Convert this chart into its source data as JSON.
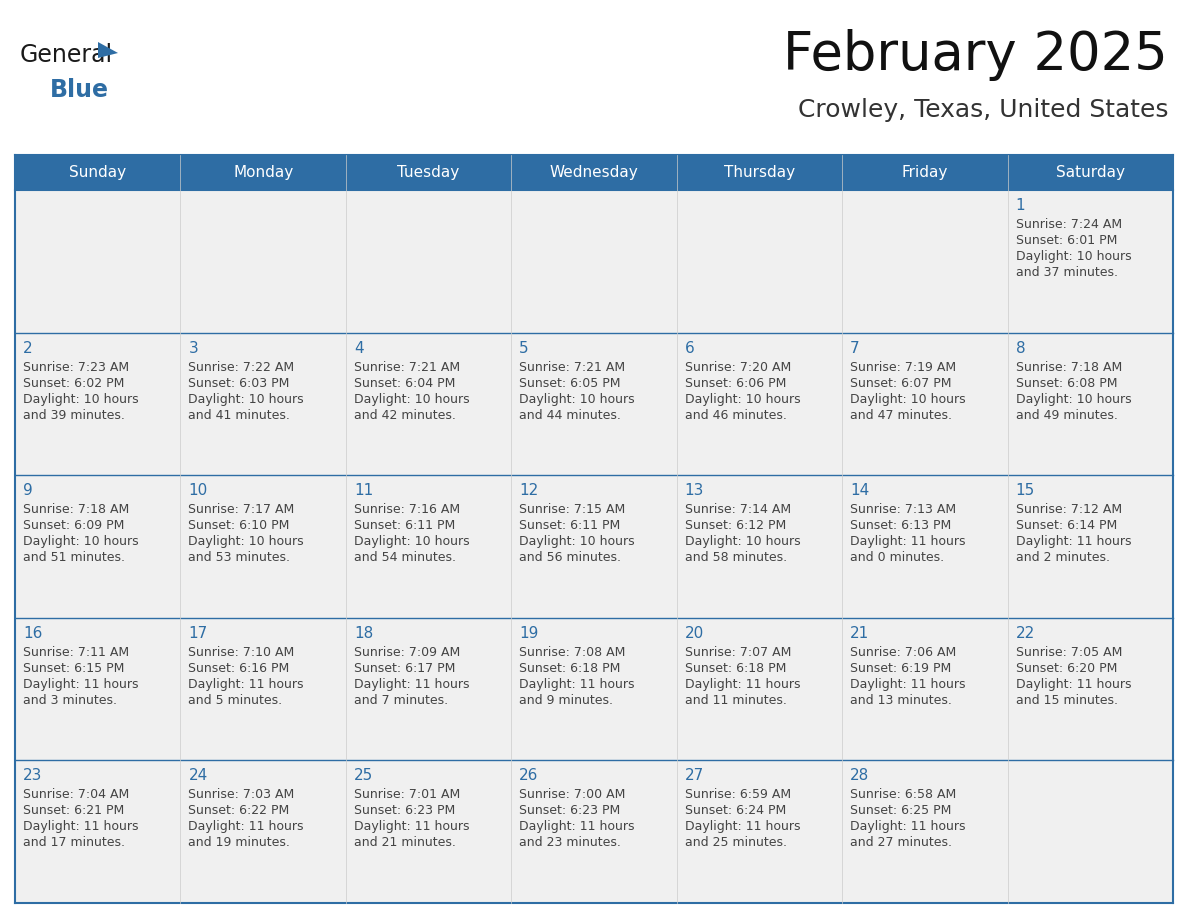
{
  "title": "February 2025",
  "subtitle": "Crowley, Texas, United States",
  "header_bg": "#2E6DA4",
  "header_text": "#FFFFFF",
  "day_names": [
    "Sunday",
    "Monday",
    "Tuesday",
    "Wednesday",
    "Thursday",
    "Friday",
    "Saturday"
  ],
  "cell_bg": "#F0F0F0",
  "border_color": "#2E6DA4",
  "number_color": "#2E6DA4",
  "text_color": "#444444",
  "logo_general_color": "#1A1A1A",
  "logo_blue_color": "#2E6DA4",
  "days": [
    {
      "day": 1,
      "col": 6,
      "row": 0,
      "sunrise": "7:24 AM",
      "sunset": "6:01 PM",
      "daylight_hours": 10,
      "daylight_minutes": 37
    },
    {
      "day": 2,
      "col": 0,
      "row": 1,
      "sunrise": "7:23 AM",
      "sunset": "6:02 PM",
      "daylight_hours": 10,
      "daylight_minutes": 39
    },
    {
      "day": 3,
      "col": 1,
      "row": 1,
      "sunrise": "7:22 AM",
      "sunset": "6:03 PM",
      "daylight_hours": 10,
      "daylight_minutes": 41
    },
    {
      "day": 4,
      "col": 2,
      "row": 1,
      "sunrise": "7:21 AM",
      "sunset": "6:04 PM",
      "daylight_hours": 10,
      "daylight_minutes": 42
    },
    {
      "day": 5,
      "col": 3,
      "row": 1,
      "sunrise": "7:21 AM",
      "sunset": "6:05 PM",
      "daylight_hours": 10,
      "daylight_minutes": 44
    },
    {
      "day": 6,
      "col": 4,
      "row": 1,
      "sunrise": "7:20 AM",
      "sunset": "6:06 PM",
      "daylight_hours": 10,
      "daylight_minutes": 46
    },
    {
      "day": 7,
      "col": 5,
      "row": 1,
      "sunrise": "7:19 AM",
      "sunset": "6:07 PM",
      "daylight_hours": 10,
      "daylight_minutes": 47
    },
    {
      "day": 8,
      "col": 6,
      "row": 1,
      "sunrise": "7:18 AM",
      "sunset": "6:08 PM",
      "daylight_hours": 10,
      "daylight_minutes": 49
    },
    {
      "day": 9,
      "col": 0,
      "row": 2,
      "sunrise": "7:18 AM",
      "sunset": "6:09 PM",
      "daylight_hours": 10,
      "daylight_minutes": 51
    },
    {
      "day": 10,
      "col": 1,
      "row": 2,
      "sunrise": "7:17 AM",
      "sunset": "6:10 PM",
      "daylight_hours": 10,
      "daylight_minutes": 53
    },
    {
      "day": 11,
      "col": 2,
      "row": 2,
      "sunrise": "7:16 AM",
      "sunset": "6:11 PM",
      "daylight_hours": 10,
      "daylight_minutes": 54
    },
    {
      "day": 12,
      "col": 3,
      "row": 2,
      "sunrise": "7:15 AM",
      "sunset": "6:11 PM",
      "daylight_hours": 10,
      "daylight_minutes": 56
    },
    {
      "day": 13,
      "col": 4,
      "row": 2,
      "sunrise": "7:14 AM",
      "sunset": "6:12 PM",
      "daylight_hours": 10,
      "daylight_minutes": 58
    },
    {
      "day": 14,
      "col": 5,
      "row": 2,
      "sunrise": "7:13 AM",
      "sunset": "6:13 PM",
      "daylight_hours": 11,
      "daylight_minutes": 0
    },
    {
      "day": 15,
      "col": 6,
      "row": 2,
      "sunrise": "7:12 AM",
      "sunset": "6:14 PM",
      "daylight_hours": 11,
      "daylight_minutes": 2
    },
    {
      "day": 16,
      "col": 0,
      "row": 3,
      "sunrise": "7:11 AM",
      "sunset": "6:15 PM",
      "daylight_hours": 11,
      "daylight_minutes": 3
    },
    {
      "day": 17,
      "col": 1,
      "row": 3,
      "sunrise": "7:10 AM",
      "sunset": "6:16 PM",
      "daylight_hours": 11,
      "daylight_minutes": 5
    },
    {
      "day": 18,
      "col": 2,
      "row": 3,
      "sunrise": "7:09 AM",
      "sunset": "6:17 PM",
      "daylight_hours": 11,
      "daylight_minutes": 7
    },
    {
      "day": 19,
      "col": 3,
      "row": 3,
      "sunrise": "7:08 AM",
      "sunset": "6:18 PM",
      "daylight_hours": 11,
      "daylight_minutes": 9
    },
    {
      "day": 20,
      "col": 4,
      "row": 3,
      "sunrise": "7:07 AM",
      "sunset": "6:18 PM",
      "daylight_hours": 11,
      "daylight_minutes": 11
    },
    {
      "day": 21,
      "col": 5,
      "row": 3,
      "sunrise": "7:06 AM",
      "sunset": "6:19 PM",
      "daylight_hours": 11,
      "daylight_minutes": 13
    },
    {
      "day": 22,
      "col": 6,
      "row": 3,
      "sunrise": "7:05 AM",
      "sunset": "6:20 PM",
      "daylight_hours": 11,
      "daylight_minutes": 15
    },
    {
      "day": 23,
      "col": 0,
      "row": 4,
      "sunrise": "7:04 AM",
      "sunset": "6:21 PM",
      "daylight_hours": 11,
      "daylight_minutes": 17
    },
    {
      "day": 24,
      "col": 1,
      "row": 4,
      "sunrise": "7:03 AM",
      "sunset": "6:22 PM",
      "daylight_hours": 11,
      "daylight_minutes": 19
    },
    {
      "day": 25,
      "col": 2,
      "row": 4,
      "sunrise": "7:01 AM",
      "sunset": "6:23 PM",
      "daylight_hours": 11,
      "daylight_minutes": 21
    },
    {
      "day": 26,
      "col": 3,
      "row": 4,
      "sunrise": "7:00 AM",
      "sunset": "6:23 PM",
      "daylight_hours": 11,
      "daylight_minutes": 23
    },
    {
      "day": 27,
      "col": 4,
      "row": 4,
      "sunrise": "6:59 AM",
      "sunset": "6:24 PM",
      "daylight_hours": 11,
      "daylight_minutes": 25
    },
    {
      "day": 28,
      "col": 5,
      "row": 4,
      "sunrise": "6:58 AM",
      "sunset": "6:25 PM",
      "daylight_hours": 11,
      "daylight_minutes": 27
    }
  ]
}
